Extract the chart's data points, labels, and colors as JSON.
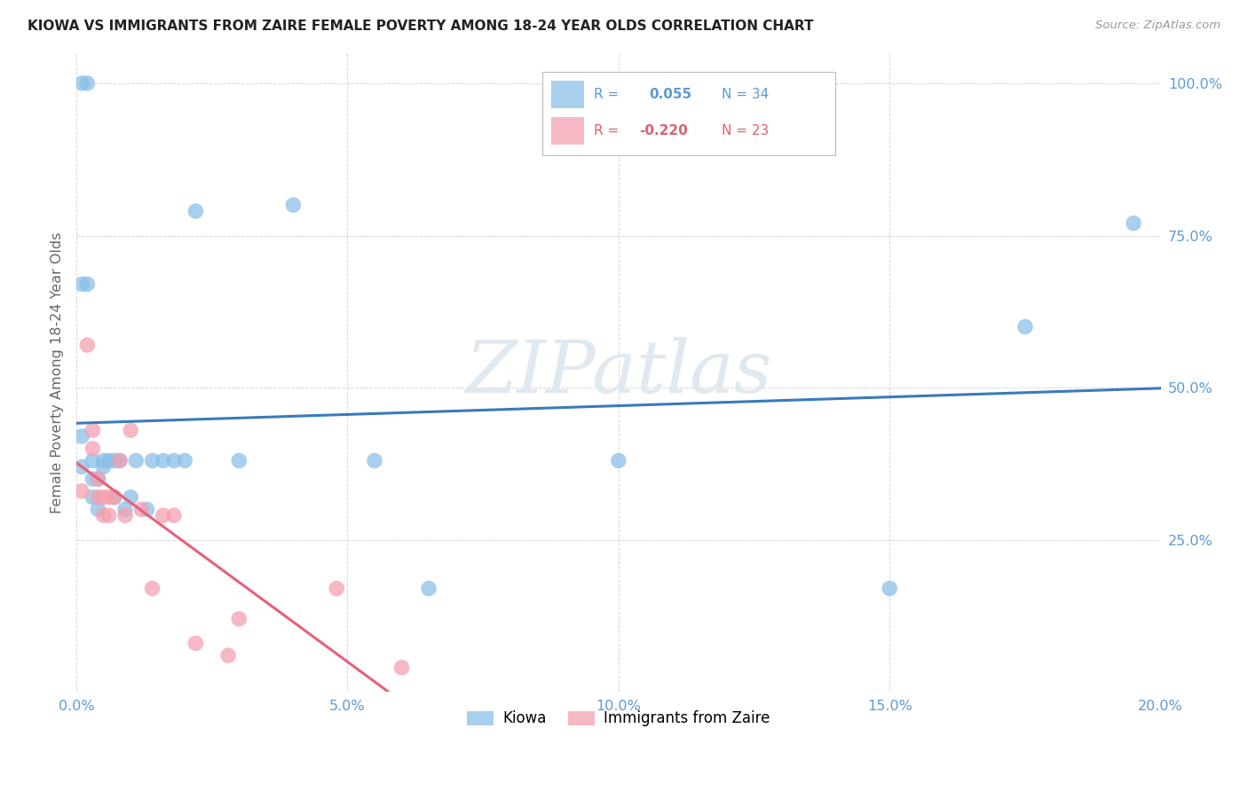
{
  "title": "KIOWA VS IMMIGRANTS FROM ZAIRE FEMALE POVERTY AMONG 18-24 YEAR OLDS CORRELATION CHART",
  "source": "Source: ZipAtlas.com",
  "ylabel": "Female Poverty Among 18-24 Year Olds",
  "xlim": [
    0.0,
    0.2
  ],
  "ylim": [
    0.0,
    1.05
  ],
  "ytick_vals": [
    0.0,
    0.25,
    0.5,
    0.75,
    1.0
  ],
  "ytick_labels": [
    "",
    "25.0%",
    "50.0%",
    "75.0%",
    "100.0%"
  ],
  "xtick_vals": [
    0.0,
    0.05,
    0.1,
    0.15,
    0.2
  ],
  "xtick_labels": [
    "0.0%",
    "5.0%",
    "10.0%",
    "15.0%",
    "20.0%"
  ],
  "kiowa_R": "0.055",
  "kiowa_N": "34",
  "zaire_R": "-0.220",
  "zaire_N": "23",
  "kiowa_color": "#8bbfe8",
  "zaire_color": "#f4a0b0",
  "kiowa_line_color": "#3a7abf",
  "zaire_line_color": "#e8607a",
  "watermark": "ZIPatlas",
  "kiowa_x": [
    0.001,
    0.002,
    0.001,
    0.002,
    0.001,
    0.001,
    0.003,
    0.003,
    0.003,
    0.004,
    0.004,
    0.005,
    0.005,
    0.006,
    0.007,
    0.007,
    0.008,
    0.009,
    0.01,
    0.011,
    0.013,
    0.014,
    0.016,
    0.018,
    0.02,
    0.022,
    0.03,
    0.04,
    0.055,
    0.065,
    0.1,
    0.15,
    0.175,
    0.195
  ],
  "kiowa_y": [
    1.0,
    1.0,
    0.67,
    0.67,
    0.42,
    0.37,
    0.38,
    0.35,
    0.32,
    0.35,
    0.3,
    0.38,
    0.37,
    0.38,
    0.38,
    0.32,
    0.38,
    0.3,
    0.32,
    0.38,
    0.3,
    0.38,
    0.38,
    0.38,
    0.38,
    0.79,
    0.38,
    0.8,
    0.38,
    0.17,
    0.38,
    0.17,
    0.6,
    0.77
  ],
  "zaire_x": [
    0.001,
    0.002,
    0.003,
    0.003,
    0.004,
    0.004,
    0.005,
    0.005,
    0.006,
    0.006,
    0.007,
    0.008,
    0.009,
    0.01,
    0.012,
    0.014,
    0.016,
    0.018,
    0.022,
    0.028,
    0.03,
    0.048,
    0.06
  ],
  "zaire_y": [
    0.33,
    0.57,
    0.4,
    0.43,
    0.35,
    0.32,
    0.32,
    0.29,
    0.32,
    0.29,
    0.32,
    0.38,
    0.29,
    0.43,
    0.3,
    0.17,
    0.29,
    0.29,
    0.08,
    0.06,
    0.12,
    0.17,
    0.04
  ]
}
